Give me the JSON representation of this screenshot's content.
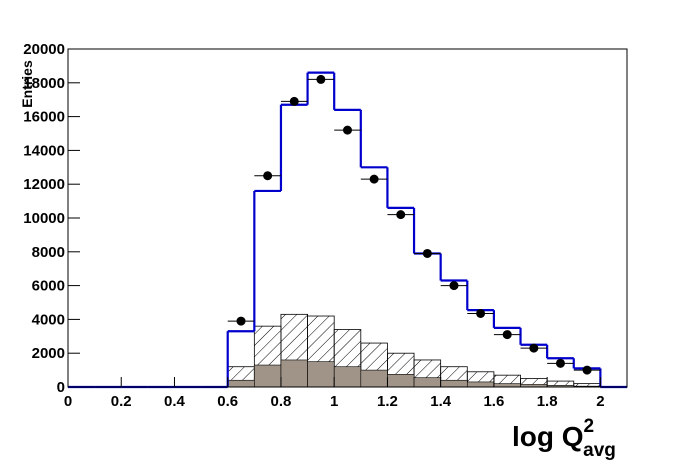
{
  "chart_data": {
    "type": "histogram",
    "y_label": "Entries",
    "x_label": {
      "main": "log Q",
      "sup": "2",
      "sub": "avg"
    },
    "bins": [
      0,
      0.1,
      0.2,
      0.3,
      0.4,
      0.5,
      0.6,
      0.7,
      0.8,
      0.9,
      1.0,
      1.1,
      1.2,
      1.3,
      1.4,
      1.5,
      1.6,
      1.7,
      1.8,
      1.9,
      2.0,
      2.1
    ],
    "series": [
      {
        "style": "step",
        "color": "#0000cc",
        "values": [
          0,
          0,
          0,
          0,
          0,
          0,
          3300,
          11600,
          16700,
          18600,
          16400,
          13000,
          10600,
          7900,
          6300,
          4550,
          3500,
          2500,
          1700,
          1100,
          0
        ]
      },
      {
        "style": "hatch",
        "color": "#000000",
        "values": [
          0,
          0,
          0,
          0,
          0,
          0,
          1200,
          3600,
          4300,
          4200,
          3400,
          2600,
          2000,
          1600,
          1200,
          900,
          700,
          500,
          350,
          200,
          0
        ]
      },
      {
        "style": "fill",
        "color": "#a09488",
        "values": [
          0,
          0,
          0,
          0,
          0,
          0,
          400,
          1300,
          1600,
          1500,
          1200,
          1000,
          750,
          550,
          400,
          300,
          200,
          150,
          100,
          50,
          0
        ]
      },
      {
        "style": "points",
        "color": "#000000",
        "xerr": 0.05,
        "x": [
          0.65,
          0.75,
          0.85,
          0.95,
          1.05,
          1.15,
          1.25,
          1.35,
          1.45,
          1.55,
          1.65,
          1.75,
          1.85,
          1.95
        ],
        "values": [
          3900,
          12500,
          16900,
          18200,
          15200,
          12300,
          10200,
          7900,
          6000,
          4350,
          3100,
          2300,
          1400,
          1000
        ]
      }
    ],
    "xlim": [
      0,
      2.1
    ],
    "ylim": [
      0,
      20000
    ],
    "xticks": [
      0,
      0.2,
      0.4,
      0.6,
      0.8,
      1,
      1.2,
      1.4,
      1.6,
      1.8,
      2
    ],
    "yticks": [
      0,
      2000,
      4000,
      6000,
      8000,
      10000,
      12000,
      14000,
      16000,
      18000,
      20000
    ]
  }
}
